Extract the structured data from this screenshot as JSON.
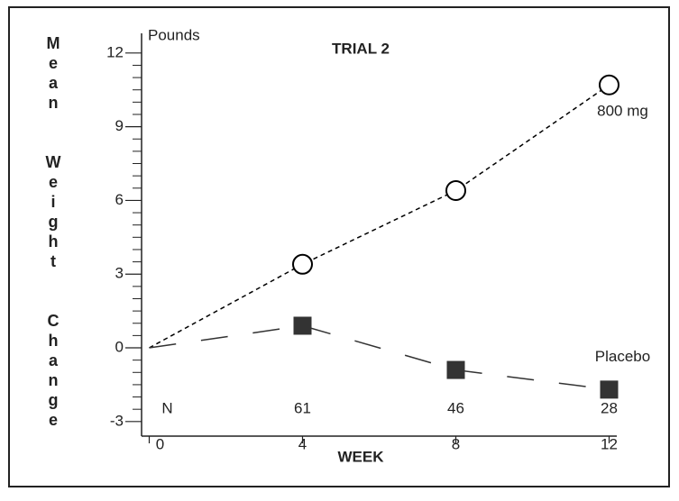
{
  "chart_data": {
    "type": "line",
    "title": "TRIAL 2",
    "ylabel": "Mean  Weight  Change",
    "yunit": "Pounds",
    "xlabel": "WEEK",
    "x": [
      0,
      4,
      8,
      12
    ],
    "series": [
      {
        "name": "800 mg",
        "color": "#000000",
        "marker": "circle",
        "values": [
          0,
          3.4,
          6.4,
          10.7
        ]
      },
      {
        "name": "Placebo",
        "color": "#333333",
        "marker": "square",
        "values": [
          0,
          0.9,
          -0.9,
          -1.7
        ]
      }
    ],
    "n_row": {
      "label": "N",
      "values": [
        "61",
        "46",
        "28"
      ]
    },
    "xlim": [
      -0.2,
      12.2
    ],
    "xticks": [
      0,
      4,
      8,
      12
    ],
    "ylim": [
      -3.3,
      12.8
    ],
    "yticks": [
      -3,
      0,
      3,
      6,
      9,
      12
    ]
  }
}
